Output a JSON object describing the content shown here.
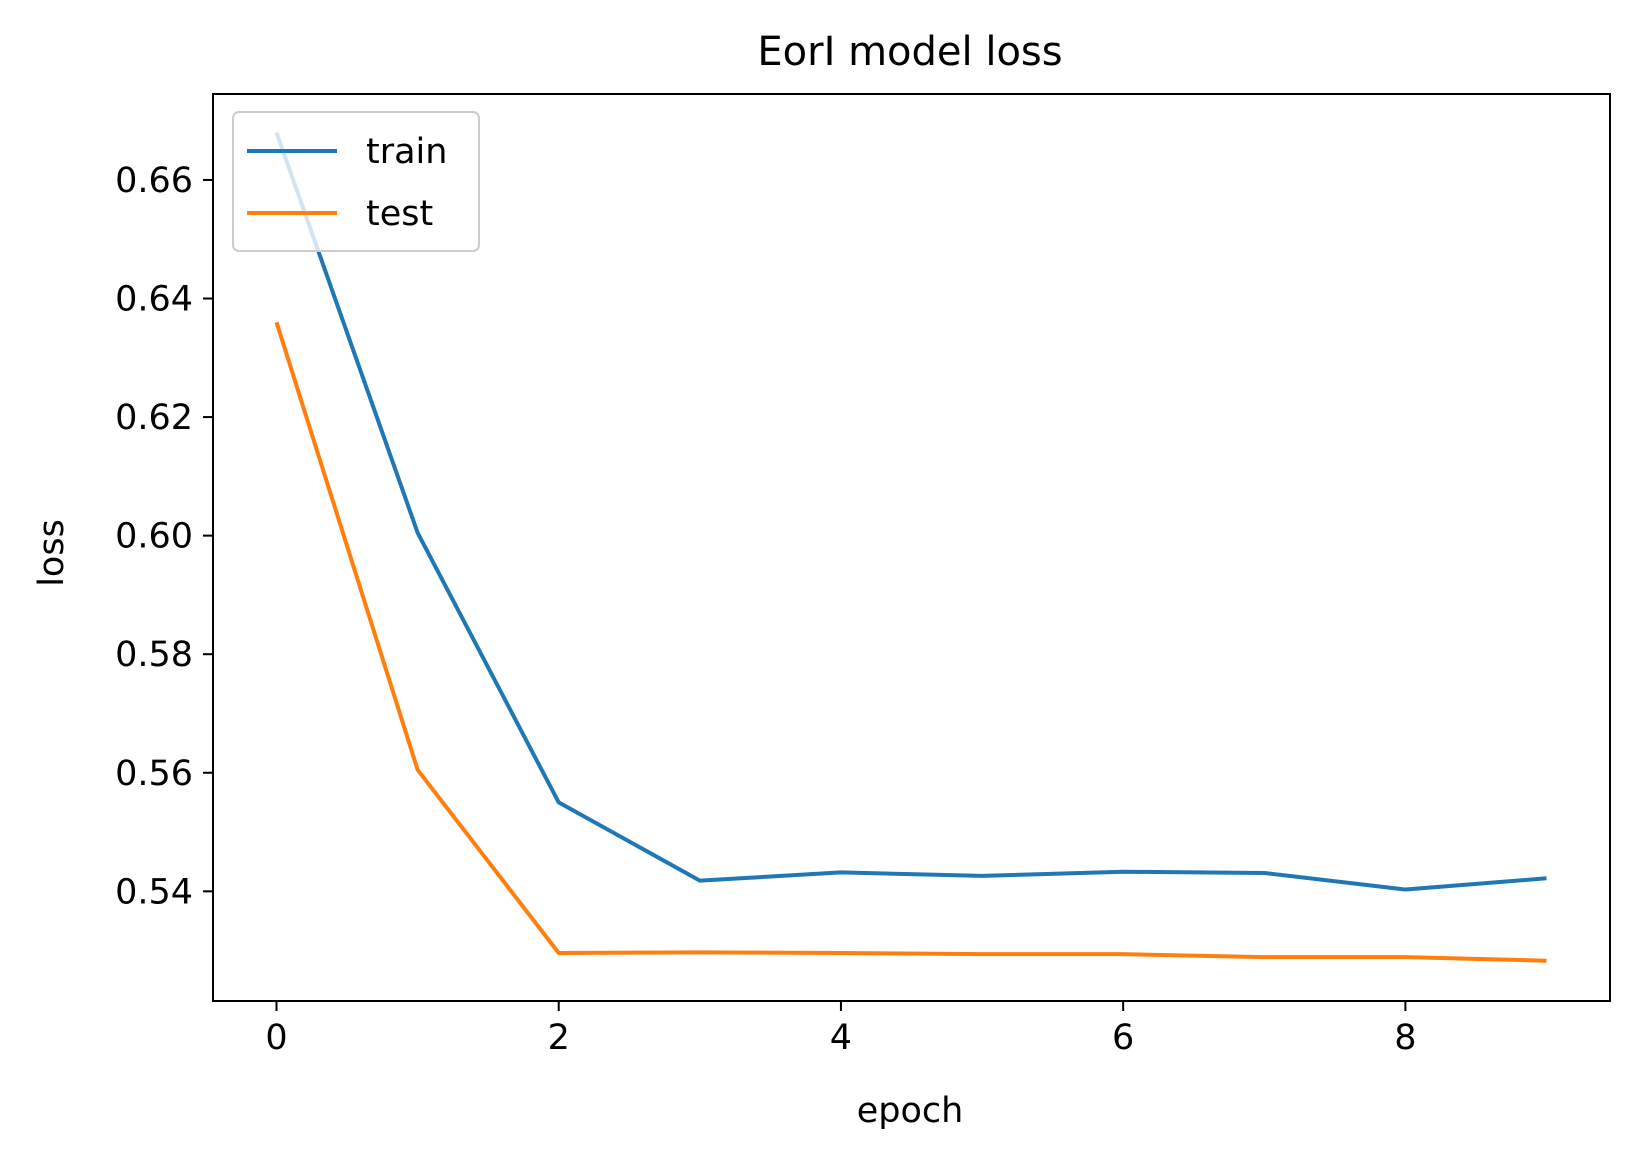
{
  "chart_data": {
    "type": "line",
    "title": "EorI model loss",
    "xlabel": "epoch",
    "ylabel": "loss",
    "x": [
      0,
      1,
      2,
      3,
      4,
      5,
      6,
      7,
      8,
      9
    ],
    "xlim": [
      -0.45,
      9.45
    ],
    "ylim": [
      0.5215,
      0.6745
    ],
    "xticks": [
      0,
      2,
      4,
      6,
      8
    ],
    "xtick_labels": [
      "0",
      "2",
      "4",
      "6",
      "8"
    ],
    "yticks": [
      0.54,
      0.56,
      0.58,
      0.6,
      0.62,
      0.64,
      0.66
    ],
    "ytick_labels": [
      "0.54",
      "0.56",
      "0.58",
      "0.60",
      "0.62",
      "0.64",
      "0.66"
    ],
    "grid": false,
    "legend_position": "top-left",
    "series": [
      {
        "name": "train",
        "color": "#1f77b4",
        "values": [
          0.668,
          0.6005,
          0.555,
          0.5418,
          0.5432,
          0.5426,
          0.5433,
          0.5431,
          0.5403,
          0.5422
        ]
      },
      {
        "name": "test",
        "color": "#ff7f0e",
        "values": [
          0.636,
          0.5605,
          0.5296,
          0.5297,
          0.5296,
          0.5294,
          0.5294,
          0.5289,
          0.5289,
          0.5283
        ]
      }
    ]
  }
}
